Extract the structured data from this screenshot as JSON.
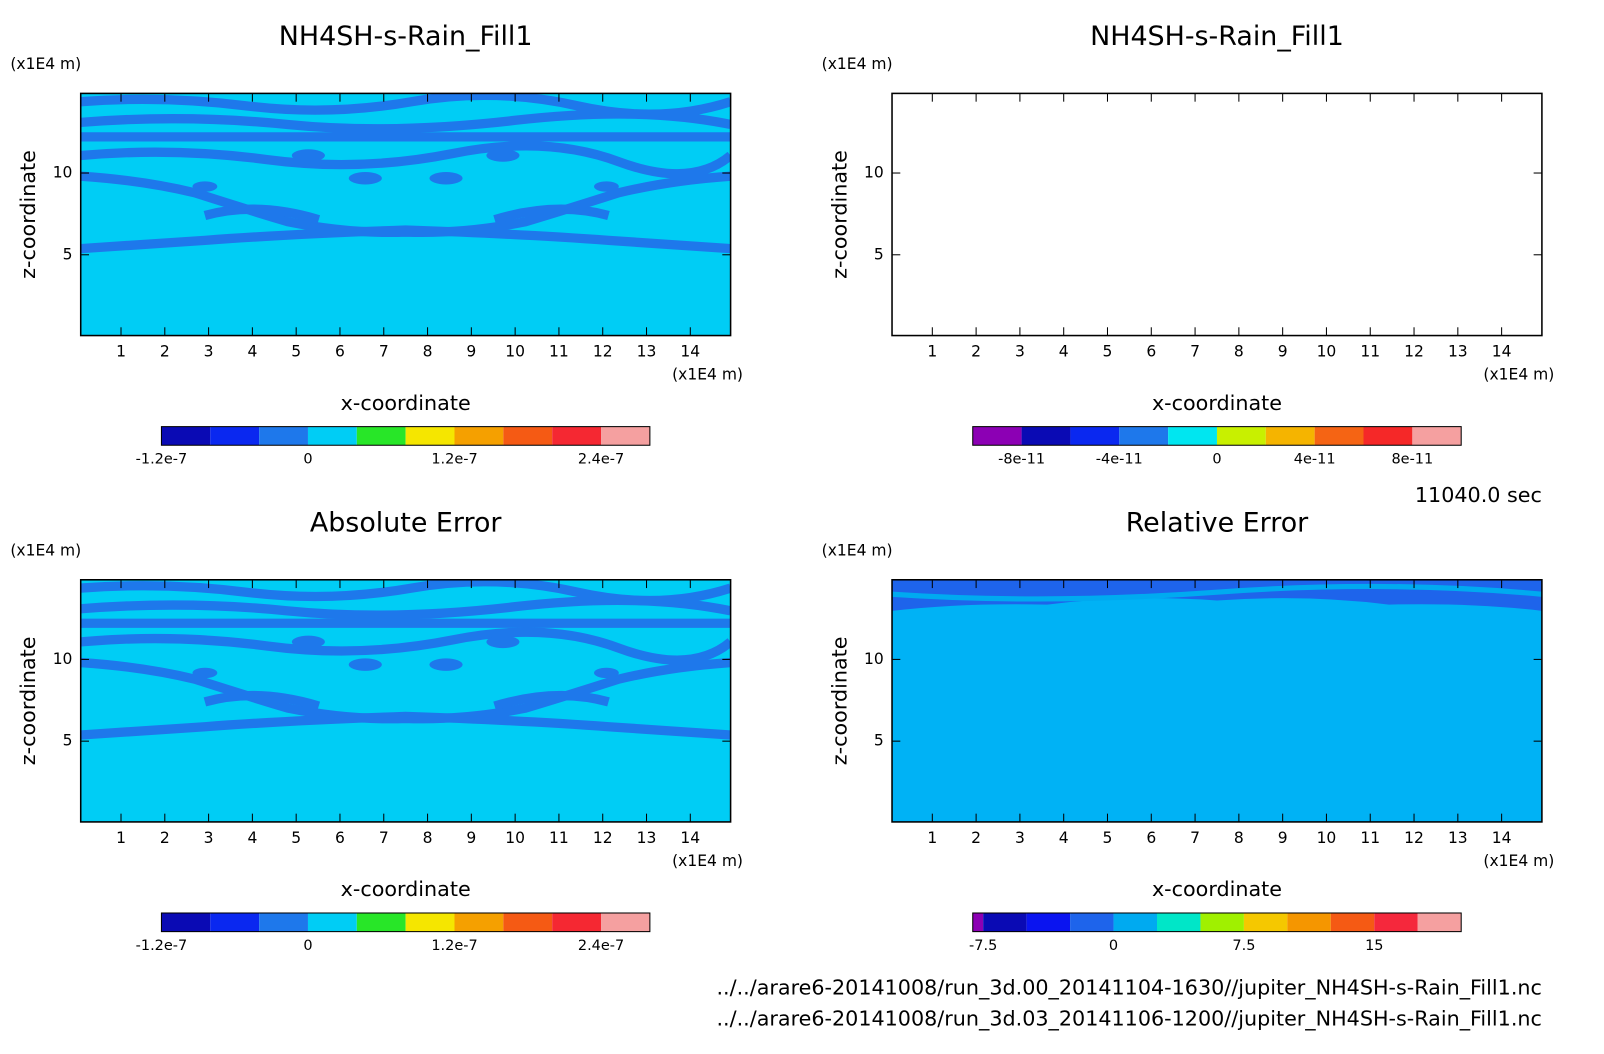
{
  "chart_data": [
    {
      "type": "contour",
      "title": "NH4SH-s-Rain_Fill1",
      "xlabel": "x-coordinate",
      "ylabel": "z-coordinate",
      "x_unit": "(x1E4 m)",
      "y_unit": "(x1E4 m)",
      "xlim": [
        0.08,
        14.92
      ],
      "ylim": [
        0.06,
        14.87
      ],
      "xticks": [
        1,
        2,
        3,
        4,
        5,
        6,
        7,
        8,
        9,
        10,
        11,
        12,
        13,
        14
      ],
      "yticks": [
        5,
        10
      ],
      "colorbar": {
        "levels": [
          -1.2e-07,
          -8e-08,
          -4e-08,
          0,
          4e-08,
          8e-08,
          1.2e-07,
          1.6e-07,
          2e-07,
          2.4e-07,
          2.8e-07
        ],
        "colors": [
          "#0a0ab4",
          "#0a28f0",
          "#1e78eb",
          "#00cdf5",
          "#28e628",
          "#f5e600",
          "#f5a000",
          "#f55a14",
          "#f52832",
          "#f5a0a0"
        ],
        "ticks": [
          -1.2e-07,
          0,
          1.2e-07,
          2.4e-07
        ]
      }
    },
    {
      "type": "contour",
      "title": "NH4SH-s-Rain_Fill1",
      "xlabel": "x-coordinate",
      "ylabel": "z-coordinate",
      "x_unit": "(x1E4 m)",
      "y_unit": "(x1E4 m)",
      "xlim": [
        0.08,
        14.92
      ],
      "ylim": [
        0.06,
        14.87
      ],
      "xticks": [
        1,
        2,
        3,
        4,
        5,
        6,
        7,
        8,
        9,
        10,
        11,
        12,
        13,
        14
      ],
      "yticks": [
        5,
        10
      ],
      "colorbar": {
        "levels": [
          -1e-10,
          -8e-11,
          -6e-11,
          -4e-11,
          -2e-11,
          0,
          2e-11,
          4e-11,
          6e-11,
          8e-11,
          1e-10
        ],
        "colors": [
          "#8c00b4",
          "#0a0ab4",
          "#0a28f0",
          "#1e78eb",
          "#00e6f0",
          "#c8f000",
          "#f5b400",
          "#f56414",
          "#f52828",
          "#f5a0a0"
        ],
        "ticks": [
          -8e-11,
          -4e-11,
          0,
          4e-11,
          8e-11
        ]
      }
    },
    {
      "type": "contour",
      "title": "Absolute Error",
      "xlabel": "x-coordinate",
      "ylabel": "z-coordinate",
      "x_unit": "(x1E4 m)",
      "y_unit": "(x1E4 m)",
      "xlim": [
        0.08,
        14.92
      ],
      "ylim": [
        0.06,
        14.87
      ],
      "xticks": [
        1,
        2,
        3,
        4,
        5,
        6,
        7,
        8,
        9,
        10,
        11,
        12,
        13,
        14
      ],
      "yticks": [
        5,
        10
      ],
      "colorbar": {
        "levels": [
          -1.2e-07,
          -8e-08,
          -4e-08,
          0,
          4e-08,
          8e-08,
          1.2e-07,
          1.6e-07,
          2e-07,
          2.4e-07,
          2.8e-07
        ],
        "colors": [
          "#0a0ab4",
          "#0a28f0",
          "#1e78eb",
          "#00cdf5",
          "#28e628",
          "#f5e600",
          "#f5a000",
          "#f55a14",
          "#f52832",
          "#f5a0a0"
        ],
        "ticks": [
          -1.2e-07,
          0,
          1.2e-07,
          2.4e-07
        ]
      }
    },
    {
      "type": "contour",
      "title": "Relative Error",
      "xlabel": "x-coordinate",
      "ylabel": "z-coordinate",
      "x_unit": "(x1E4 m)",
      "y_unit": "(x1E4 m)",
      "xlim": [
        0.08,
        14.92
      ],
      "ylim": [
        0.06,
        14.87
      ],
      "xticks": [
        1,
        2,
        3,
        4,
        5,
        6,
        7,
        8,
        9,
        10,
        11,
        12,
        13,
        14
      ],
      "yticks": [
        5,
        10
      ],
      "colorbar": {
        "levels": [
          -8.1,
          -7.5,
          -5,
          -2.5,
          0,
          2.5,
          5,
          7.5,
          10,
          12.5,
          15,
          17.5,
          20
        ],
        "colors": [
          "#8c00b4",
          "#0a0ab4",
          "#0a14f0",
          "#1e64eb",
          "#00aaf0",
          "#00e6c8",
          "#a0f000",
          "#f5c800",
          "#f59600",
          "#f55a14",
          "#f5283c",
          "#f5a0a0"
        ],
        "ticks": [
          -7.5,
          0,
          7.5,
          15
        ]
      }
    }
  ],
  "annotations": {
    "time": "11040.0 sec",
    "files": [
      "../../arare6-20141008/run_3d.00_20141104-1630//jupiter_NH4SH-s-Rain_Fill1.nc",
      "../../arare6-20141008/run_3d.03_20141106-1200//jupiter_NH4SH-s-Rain_Fill1.nc"
    ]
  }
}
